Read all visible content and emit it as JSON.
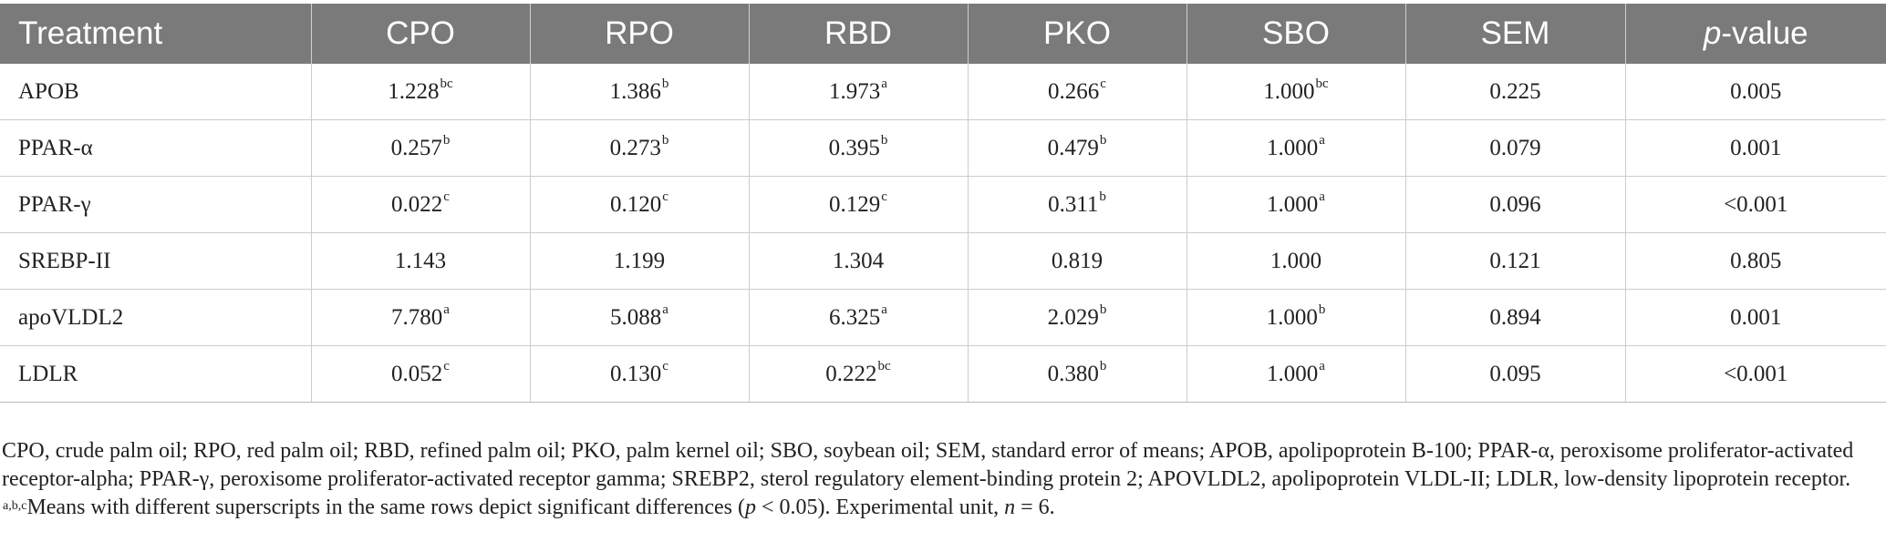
{
  "table": {
    "headers": [
      "Treatment",
      "CPO",
      "RPO",
      "RBD",
      "PKO",
      "SBO",
      "SEM",
      "p-value"
    ],
    "header_pvalue_italic": "p",
    "header_pvalue_rest": "-value",
    "rows": [
      {
        "name": "APOB",
        "cells": [
          {
            "v": "1.228",
            "s": "bc"
          },
          {
            "v": "1.386",
            "s": "b"
          },
          {
            "v": "1.973",
            "s": "a"
          },
          {
            "v": "0.266",
            "s": "c"
          },
          {
            "v": "1.000",
            "s": "bc"
          }
        ],
        "sem": "0.225",
        "p": "0.005"
      },
      {
        "name": "PPAR-α",
        "cells": [
          {
            "v": "0.257",
            "s": "b"
          },
          {
            "v": "0.273",
            "s": "b"
          },
          {
            "v": "0.395",
            "s": "b"
          },
          {
            "v": "0.479",
            "s": "b"
          },
          {
            "v": "1.000",
            "s": "a"
          }
        ],
        "sem": "0.079",
        "p": "0.001"
      },
      {
        "name": "PPAR-γ",
        "cells": [
          {
            "v": "0.022",
            "s": "c"
          },
          {
            "v": "0.120",
            "s": "c"
          },
          {
            "v": "0.129",
            "s": "c"
          },
          {
            "v": "0.311",
            "s": "b"
          },
          {
            "v": "1.000",
            "s": "a"
          }
        ],
        "sem": "0.096",
        "p": "<0.001"
      },
      {
        "name": "SREBP-II",
        "cells": [
          {
            "v": "1.143",
            "s": ""
          },
          {
            "v": "1.199",
            "s": ""
          },
          {
            "v": "1.304",
            "s": ""
          },
          {
            "v": "0.819",
            "s": ""
          },
          {
            "v": "1.000",
            "s": ""
          }
        ],
        "sem": "0.121",
        "p": "0.805"
      },
      {
        "name": "apoVLDL2",
        "cells": [
          {
            "v": "7.780",
            "s": "a"
          },
          {
            "v": "5.088",
            "s": "a"
          },
          {
            "v": "6.325",
            "s": "a"
          },
          {
            "v": "2.029",
            "s": "b"
          },
          {
            "v": "1.000",
            "s": "b"
          }
        ],
        "sem": "0.894",
        "p": "0.001"
      },
      {
        "name": "LDLR",
        "cells": [
          {
            "v": "0.052",
            "s": "c"
          },
          {
            "v": "0.130",
            "s": "c"
          },
          {
            "v": "0.222",
            "s": "bc"
          },
          {
            "v": "0.380",
            "s": "b"
          },
          {
            "v": "1.000",
            "s": "a"
          }
        ],
        "sem": "0.095",
        "p": "<0.001"
      }
    ]
  },
  "footnote": {
    "abbreviations": "CPO, crude palm oil; RPO, red palm oil; RBD, refined palm oil; PKO, palm kernel oil; SBO, soybean oil; SEM, standard error of means; APOB, apolipoprotein B-100; PPAR-α, peroxisome proliferator-activated receptor-alpha; PPAR-γ, peroxisome proliferator-activated receptor gamma; SREBP2, sterol regulatory element-binding protein 2; APOVLDL2, apolipoprotein VLDL-II; LDLR, low-density lipoprotein receptor.",
    "sup_marks": "a,b,c",
    "means_text_1": "Means with different superscripts in the same rows depict significant differences (",
    "p_symbol": "p",
    "means_text_2": " < 0.05). Experimental unit, ",
    "n_symbol": "n",
    "means_text_3": " = 6."
  }
}
